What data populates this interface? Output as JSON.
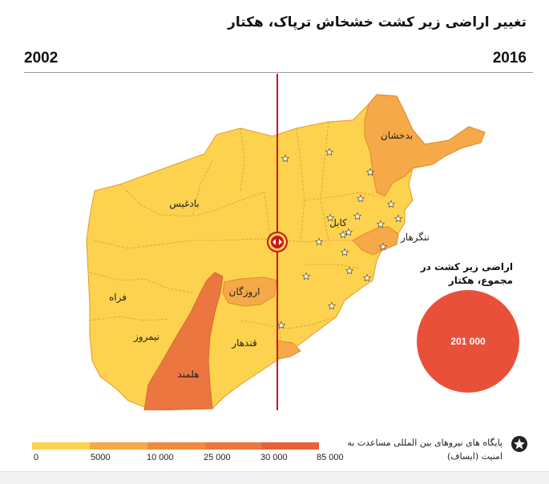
{
  "title": "تغییر اراضی زیر کشت خشخاش ترپاک، هکتار",
  "years": {
    "left": "2002",
    "right": "2016"
  },
  "slider": {
    "handle_icon": "left-right-arrows-icon",
    "color": "#c8161d"
  },
  "regions": [
    {
      "key": "badakhshan",
      "label": "بدخشان"
    },
    {
      "key": "badghis",
      "label": "بادغیس"
    },
    {
      "key": "farah",
      "label": "فراه"
    },
    {
      "key": "nimroz",
      "label": "نیمروز"
    },
    {
      "key": "helmand",
      "label": "هلمند"
    },
    {
      "key": "kandahar",
      "label": "قندهار"
    },
    {
      "key": "uruzgan",
      "label": "اروزگان"
    },
    {
      "key": "kabul",
      "label": "کابل"
    },
    {
      "key": "nangarhar",
      "label": "ننگرهار"
    }
  ],
  "total": {
    "label": "اراضی زیر کشت در مجموع، هکتار",
    "value": "201 000",
    "color": "#e9503a"
  },
  "legend": {
    "colors": [
      "#fcd24f",
      "#f6a948",
      "#f08a3f",
      "#ec7640",
      "#e8603a"
    ],
    "ticks": [
      "0",
      "5000",
      "10 000",
      "25 000",
      "30 000",
      "85 000"
    ]
  },
  "isaf_note": {
    "icon": "star-circle-icon",
    "text": "پایگاه های نیروهای بین المللی مساعدت به امنیت (ایساف)"
  },
  "colors": {
    "low": "#fcd24f",
    "mid": "#f6a948",
    "high": "#ec7640",
    "border": "#e08a2a"
  }
}
